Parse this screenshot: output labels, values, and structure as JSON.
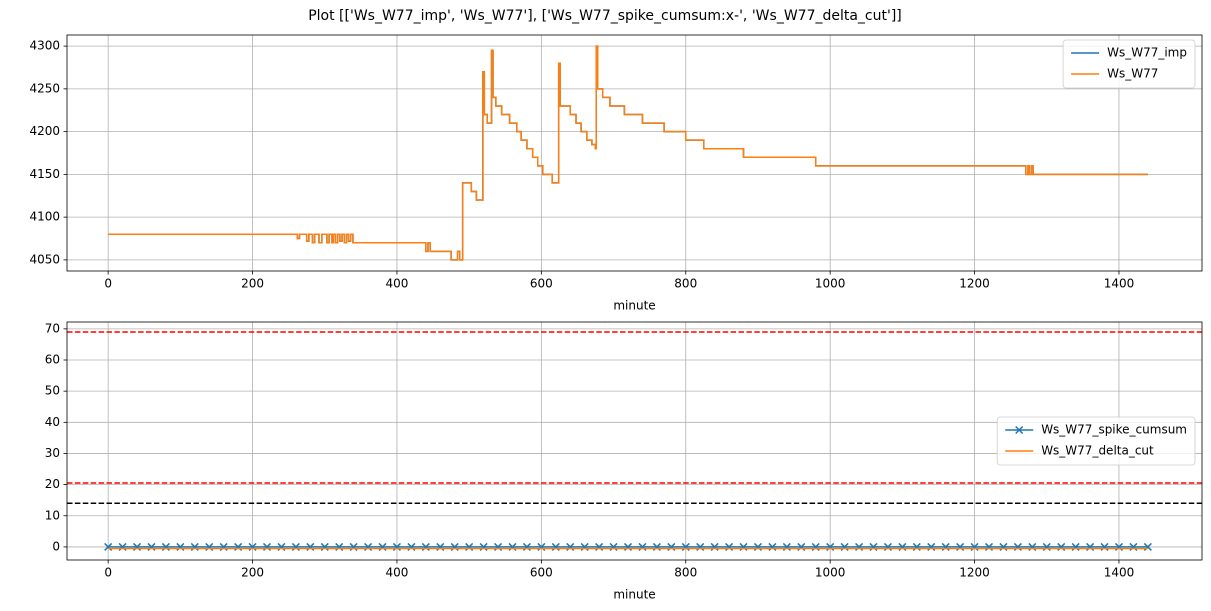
{
  "title": "Plot [['Ws_W77_imp', 'Ws_W77'], ['Ws_W77_spike_cumsum:x-', 'Ws_W77_delta_cut']]",
  "chart_data": [
    {
      "type": "line",
      "xlabel": "minute",
      "x": [
        0,
        262,
        262,
        265,
        265,
        275,
        275,
        278,
        278,
        283,
        283,
        286,
        286,
        292,
        292,
        296,
        296,
        303,
        303,
        306,
        306,
        310,
        310,
        312,
        312,
        315,
        315,
        318,
        318,
        321,
        321,
        324,
        324,
        327,
        327,
        330,
        330,
        333,
        333,
        336,
        336,
        339,
        339,
        440,
        440,
        443,
        443,
        446,
        446,
        475,
        475,
        484,
        484,
        487,
        487,
        491,
        491,
        503,
        503,
        510,
        510,
        519,
        519,
        521,
        521,
        525,
        525,
        531,
        531,
        533,
        533,
        537,
        537,
        545,
        545,
        556,
        556,
        566,
        566,
        572,
        572,
        580,
        580,
        588,
        588,
        595,
        595,
        602,
        602,
        615,
        615,
        624,
        624,
        626,
        626,
        640,
        640,
        648,
        648,
        655,
        655,
        663,
        663,
        670,
        670,
        675,
        675,
        676,
        676,
        678,
        678,
        685,
        685,
        695,
        695,
        715,
        715,
        740,
        740,
        770,
        770,
        800,
        800,
        825,
        825,
        880,
        880,
        980,
        980,
        1271,
        1271,
        1274,
        1274,
        1276,
        1276,
        1279,
        1279,
        1281,
        1281,
        1440
      ],
      "series": [
        {
          "name": "Ws_W77_imp",
          "color": "#1f77b4",
          "values": [
            4080,
            4080,
            4075,
            4075,
            4080,
            4080,
            4072,
            4072,
            4080,
            4080,
            4070,
            4070,
            4080,
            4080,
            4070,
            4070,
            4080,
            4080,
            4070,
            4070,
            4080,
            4080,
            4070,
            4070,
            4080,
            4080,
            4070,
            4070,
            4080,
            4080,
            4072,
            4072,
            4080,
            4080,
            4070,
            4070,
            4080,
            4080,
            4072,
            4072,
            4080,
            4080,
            4070,
            4070,
            4060,
            4060,
            4070,
            4070,
            4060,
            4060,
            4050,
            4050,
            4060,
            4060,
            4050,
            4050,
            4140,
            4140,
            4130,
            4130,
            4120,
            4120,
            4270,
            4270,
            4220,
            4220,
            4210,
            4210,
            4295,
            4295,
            4240,
            4240,
            4230,
            4230,
            4220,
            4220,
            4210,
            4210,
            4200,
            4200,
            4190,
            4190,
            4180,
            4180,
            4170,
            4170,
            4160,
            4160,
            4150,
            4150,
            4140,
            4140,
            4280,
            4280,
            4230,
            4230,
            4220,
            4220,
            4210,
            4210,
            4200,
            4200,
            4190,
            4190,
            4185,
            4185,
            4180,
            4180,
            4300,
            4300,
            4250,
            4250,
            4240,
            4240,
            4230,
            4230,
            4220,
            4220,
            4210,
            4210,
            4200,
            4200,
            4190,
            4190,
            4180,
            4180,
            4170,
            4170,
            4160,
            4160,
            4150,
            4150,
            4160,
            4160,
            4150,
            4150,
            4160,
            4160,
            4150,
            4150
          ]
        },
        {
          "name": "Ws_W77",
          "color": "#ff7f0e",
          "values": [
            4080,
            4080,
            4075,
            4075,
            4080,
            4080,
            4072,
            4072,
            4080,
            4080,
            4070,
            4070,
            4080,
            4080,
            4070,
            4070,
            4080,
            4080,
            4070,
            4070,
            4080,
            4080,
            4070,
            4070,
            4080,
            4080,
            4070,
            4070,
            4080,
            4080,
            4072,
            4072,
            4080,
            4080,
            4070,
            4070,
            4080,
            4080,
            4072,
            4072,
            4080,
            4080,
            4070,
            4070,
            4060,
            4060,
            4070,
            4070,
            4060,
            4060,
            4050,
            4050,
            4060,
            4060,
            4050,
            4050,
            4140,
            4140,
            4130,
            4130,
            4120,
            4120,
            4270,
            4270,
            4220,
            4220,
            4210,
            4210,
            4295,
            4295,
            4240,
            4240,
            4230,
            4230,
            4220,
            4220,
            4210,
            4210,
            4200,
            4200,
            4190,
            4190,
            4180,
            4180,
            4170,
            4170,
            4160,
            4160,
            4150,
            4150,
            4140,
            4140,
            4280,
            4280,
            4230,
            4230,
            4220,
            4220,
            4210,
            4210,
            4200,
            4200,
            4190,
            4190,
            4185,
            4185,
            4180,
            4180,
            4300,
            4300,
            4250,
            4250,
            4240,
            4240,
            4230,
            4230,
            4220,
            4220,
            4210,
            4210,
            4200,
            4200,
            4190,
            4190,
            4180,
            4180,
            4170,
            4170,
            4160,
            4160,
            4150,
            4150,
            4160,
            4160,
            4150,
            4150,
            4160,
            4160,
            4150,
            4150
          ]
        }
      ],
      "xlim": [
        -57,
        1515
      ],
      "xticks": [
        0,
        200,
        400,
        600,
        800,
        1000,
        1200,
        1400
      ],
      "ylim": [
        4037,
        4313
      ],
      "yticks": [
        4050,
        4100,
        4150,
        4200,
        4250,
        4300
      ],
      "grid": true,
      "legend": "upper right"
    },
    {
      "type": "line",
      "xlabel": "minute",
      "x": [
        0,
        20,
        40,
        60,
        80,
        100,
        120,
        140,
        160,
        180,
        200,
        220,
        240,
        260,
        280,
        300,
        320,
        340,
        360,
        380,
        400,
        420,
        440,
        460,
        480,
        500,
        520,
        540,
        560,
        580,
        600,
        620,
        640,
        660,
        680,
        700,
        720,
        740,
        760,
        780,
        800,
        820,
        840,
        860,
        880,
        900,
        920,
        940,
        960,
        980,
        1000,
        1020,
        1040,
        1060,
        1080,
        1100,
        1120,
        1140,
        1160,
        1180,
        1200,
        1220,
        1240,
        1260,
        1280,
        1300,
        1320,
        1340,
        1360,
        1380,
        1400,
        1420,
        1440
      ],
      "series": [
        {
          "name": "Ws_W77_spike_cumsum",
          "color": "#1f77b4",
          "marker": "x",
          "values": [
            0,
            0,
            0,
            0,
            0,
            0,
            0,
            0,
            0,
            0,
            0,
            0,
            0,
            0,
            0,
            0,
            0,
            0,
            0,
            0,
            0,
            0,
            0,
            0,
            0,
            0,
            0,
            0,
            0,
            0,
            0,
            0,
            0,
            0,
            0,
            0,
            0,
            0,
            0,
            0,
            0,
            0,
            0,
            0,
            0,
            0,
            0,
            0,
            0,
            0,
            0,
            0,
            0,
            0,
            0,
            0,
            0,
            0,
            0,
            0,
            0,
            0,
            0,
            0,
            0,
            0,
            0,
            0,
            0,
            0,
            0,
            0,
            0
          ]
        },
        {
          "name": "Ws_W77_delta_cut",
          "color": "#ff7f0e",
          "values": [
            -0.5,
            -0.5,
            -0.5,
            -0.5,
            -0.5,
            -0.5,
            -0.5,
            -0.5,
            -0.5,
            -0.5,
            -0.5,
            -0.5,
            -0.5,
            -0.5,
            -0.5,
            -0.5,
            -0.5,
            -0.5,
            -0.5,
            -0.5,
            -0.5,
            -0.5,
            -0.5,
            -0.5,
            -0.5,
            -0.5,
            -0.5,
            -0.5,
            -0.5,
            -0.5,
            -0.5,
            -0.5,
            -0.5,
            -0.5,
            -0.5,
            -0.5,
            -0.5,
            -0.5,
            -0.5,
            -0.5,
            -0.5,
            -0.5,
            -0.5,
            -0.5,
            -0.5,
            -0.5,
            -0.5,
            -0.5,
            -0.5,
            -0.5,
            -0.5,
            -0.5,
            -0.5,
            -0.5,
            -0.5,
            -0.5,
            -0.5,
            -0.5,
            -0.5,
            -0.5,
            -0.5,
            -0.5,
            -0.5,
            -0.5,
            -0.5,
            -0.5,
            -0.5,
            -0.5,
            -0.5,
            -0.5,
            -0.5,
            -0.5,
            -0.5
          ]
        }
      ],
      "hlines": [
        {
          "value": 69,
          "color": "#ff0000"
        },
        {
          "value": 20.5,
          "color": "#ff0000"
        },
        {
          "value": 14,
          "color": "#000000"
        }
      ],
      "xlim": [
        -57,
        1515
      ],
      "xticks": [
        0,
        200,
        400,
        600,
        800,
        1000,
        1200,
        1400
      ],
      "ylim": [
        -4.2,
        72.2
      ],
      "yticks": [
        0,
        10,
        20,
        30,
        40,
        50,
        60,
        70
      ],
      "grid": true,
      "legend": "center right"
    }
  ]
}
